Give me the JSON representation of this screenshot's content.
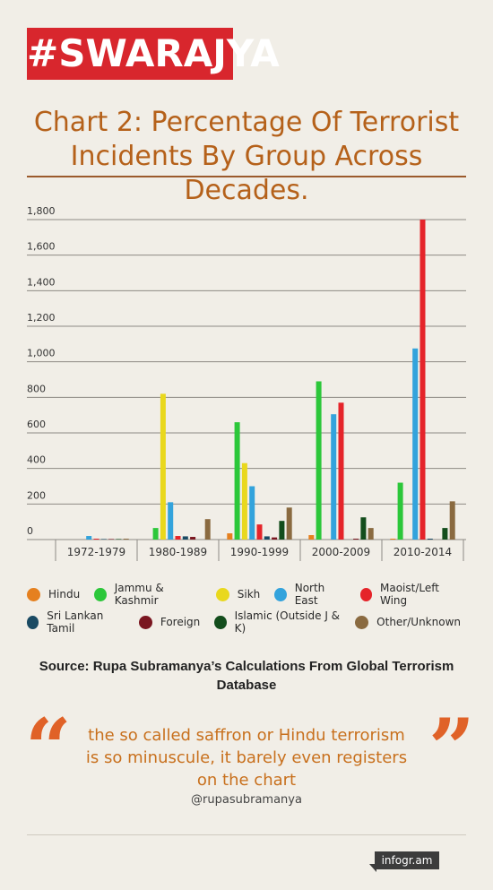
{
  "brand": {
    "logo_text": "#SWARAJYA"
  },
  "header": {
    "title_line1": "Chart 2: Percentage Of Terrorist",
    "title_line2": "Incidents By Group Across Decades."
  },
  "chart_data": {
    "type": "bar",
    "title": "Chart 2: Percentage Of Terrorist Incidents By Group Across Decades.",
    "categories": [
      "1972-1979",
      "1980-1989",
      "1990-1999",
      "2000-2009",
      "2010-2014"
    ],
    "ylim": [
      0,
      1800
    ],
    "yticks": [
      0,
      200,
      400,
      600,
      800,
      1000,
      1200,
      1400,
      1600,
      1800
    ],
    "ytick_labels": [
      "0",
      "200",
      "400",
      "600",
      "800",
      "1,000",
      "1,200",
      "1,400",
      "1,600",
      "1,800"
    ],
    "grid": true,
    "legend_position": "bottom",
    "series": [
      {
        "name": "Hindu",
        "color": "#e5801f",
        "values": [
          0,
          0,
          35,
          25,
          5
        ]
      },
      {
        "name": "Jammu & Kashmir",
        "color": "#2cc73a",
        "values": [
          0,
          65,
          660,
          890,
          320
        ]
      },
      {
        "name": "Sikh",
        "color": "#e9d81d",
        "values": [
          0,
          820,
          430,
          0,
          0
        ]
      },
      {
        "name": "North East",
        "color": "#33a3dc",
        "values": [
          20,
          210,
          300,
          705,
          1075
        ]
      },
      {
        "name": "Maoist/Left Wing",
        "color": "#e5242a",
        "values": [
          5,
          20,
          85,
          770,
          1800
        ]
      },
      {
        "name": "Sri Lankan Tamil",
        "color": "#1a4a63",
        "values": [
          3,
          18,
          18,
          0,
          5
        ]
      },
      {
        "name": "Foreign",
        "color": "#7a1620",
        "values": [
          3,
          15,
          12,
          5,
          0
        ]
      },
      {
        "name": "Islamic (Outside J & K)",
        "color": "#134d1c",
        "values": [
          3,
          0,
          105,
          125,
          65
        ]
      },
      {
        "name": "Other/Unknown",
        "color": "#8a6a40",
        "values": [
          5,
          115,
          180,
          65,
          215
        ]
      }
    ]
  },
  "legend": {
    "row1": [
      "Hindu",
      "Jammu & Kashmir",
      "Sikh",
      "North East",
      "Maoist/Left Wing"
    ],
    "row2": [
      "Sri Lankan Tamil",
      "Foreign",
      "Islamic (Outside J & K)",
      "Other/Unknown"
    ]
  },
  "source": {
    "text": "Source: Rupa Subramanya’s Calculations From Global Terrorism Database"
  },
  "quote": {
    "open_mark": "“",
    "close_mark": "”",
    "line1": "the so called saffron or Hindu terrorism",
    "line2": "is so minuscule, it barely even registers",
    "line3": "on the chart",
    "handle": "@rupasubramanya"
  },
  "footer": {
    "badge": "infogr.am"
  }
}
